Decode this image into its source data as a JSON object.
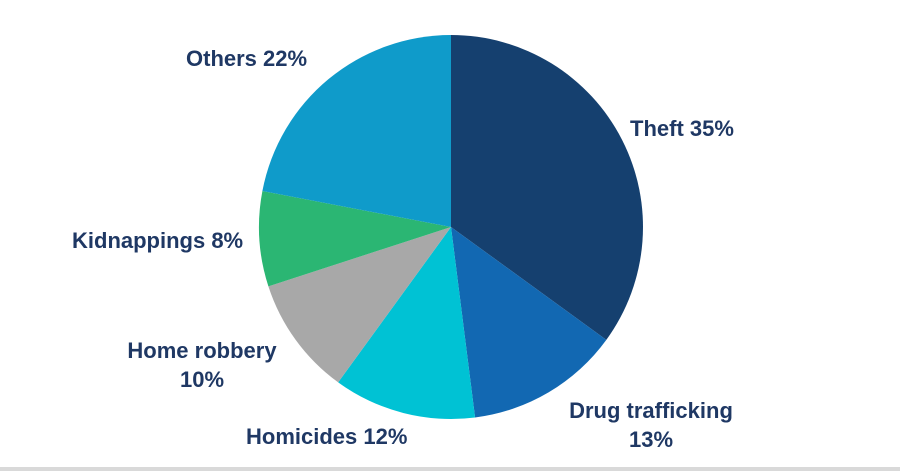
{
  "chart_data": {
    "type": "pie",
    "title": "",
    "start_angle_deg": 0,
    "direction": "clockwise",
    "legend_position": "none",
    "label_color": "#1f3864",
    "background_color": "#ffffff",
    "slices": [
      {
        "name": "Theft",
        "value": 35,
        "color": "#15406f",
        "label_lines": [
          "Theft 35%"
        ]
      },
      {
        "name": "Drug trafficking",
        "value": 13,
        "color": "#1268b2",
        "label_lines": [
          "Drug trafficking",
          "13%"
        ]
      },
      {
        "name": "Homicides",
        "value": 12,
        "color": "#00c2d4",
        "label_lines": [
          "Homicides 12%"
        ]
      },
      {
        "name": "Home robbery",
        "value": 10,
        "color": "#a8a8a8",
        "label_lines": [
          "Home robbery",
          "10%"
        ]
      },
      {
        "name": "Kidnappings",
        "value": 8,
        "color": "#2bb673",
        "label_lines": [
          "Kidnappings 8%"
        ]
      },
      {
        "name": "Others",
        "value": 22,
        "color": "#0f9bca",
        "label_lines": [
          "Others 22%"
        ]
      }
    ]
  }
}
